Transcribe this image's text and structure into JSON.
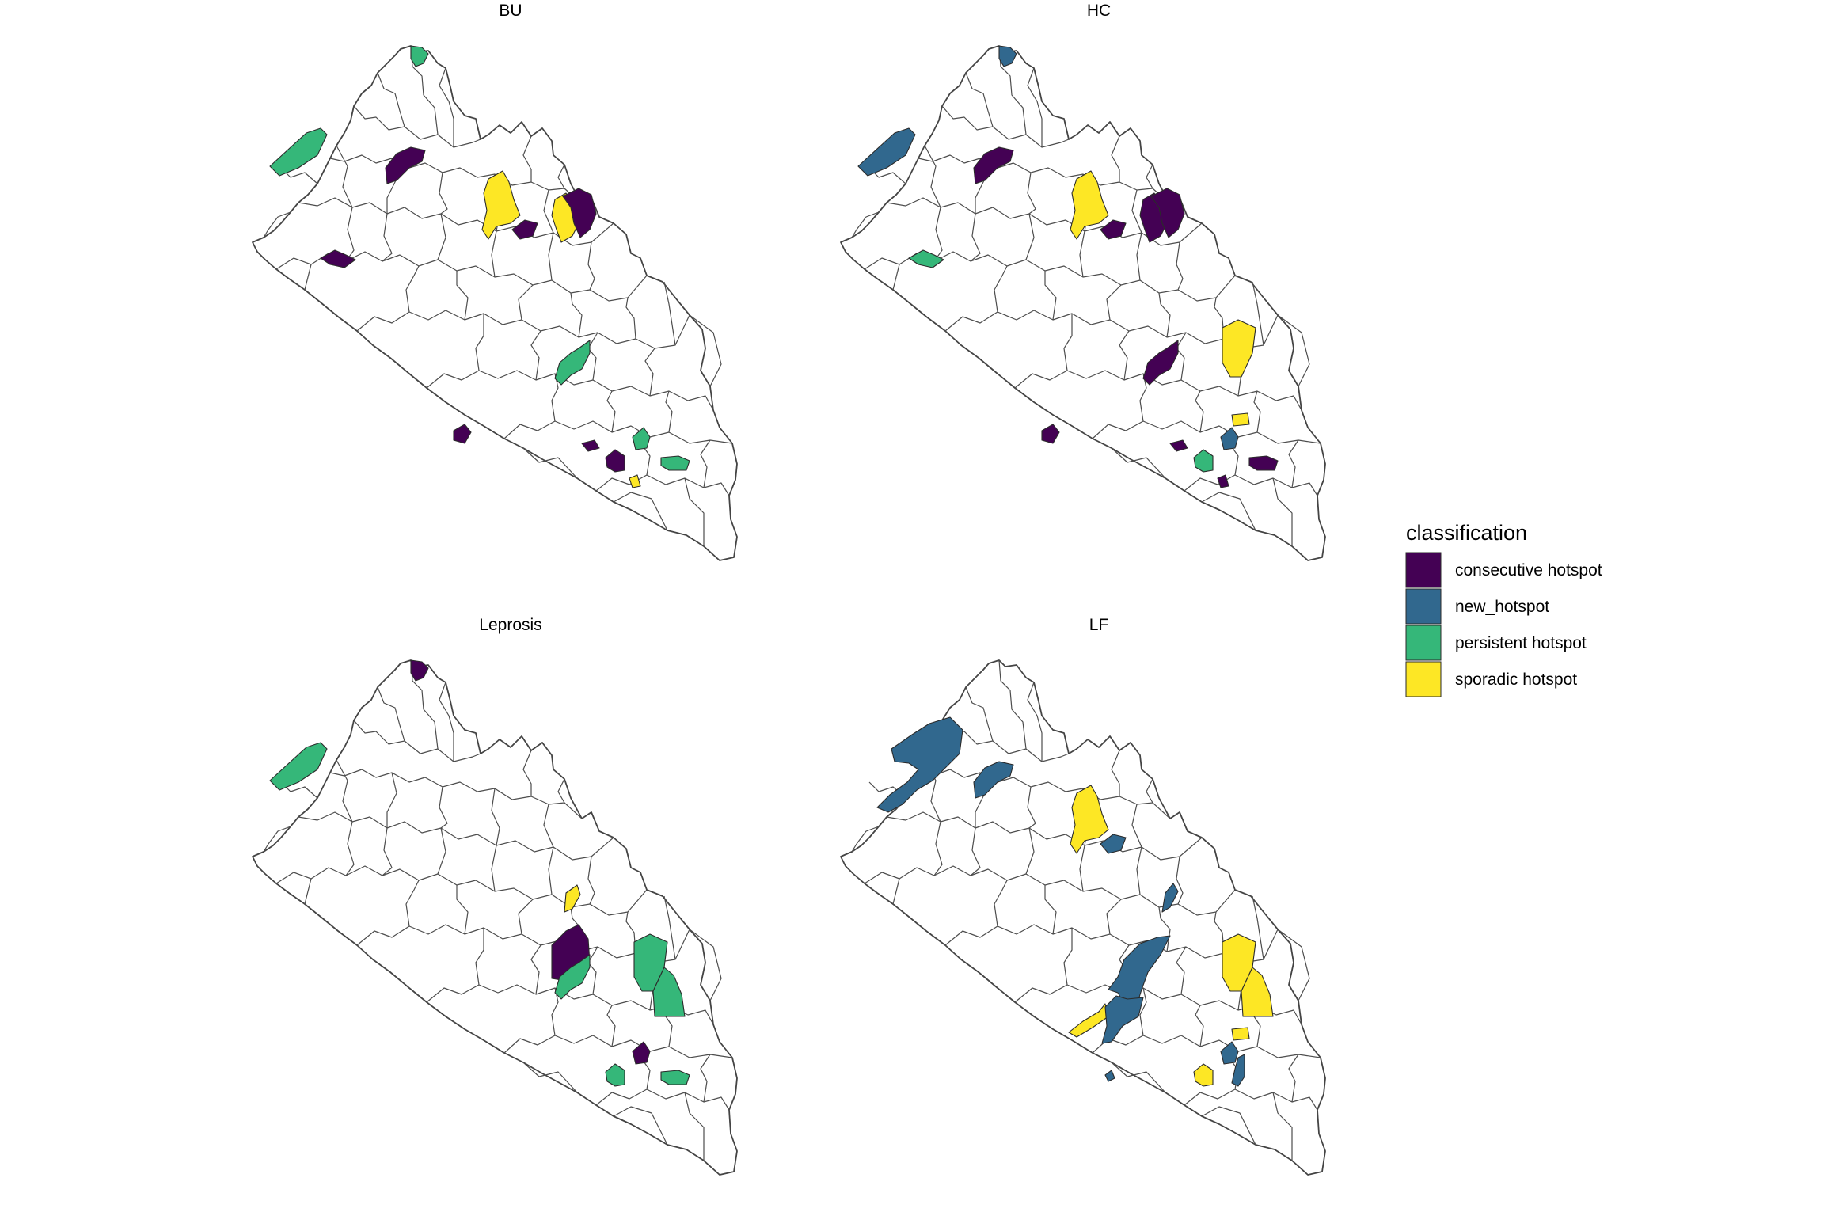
{
  "legend": {
    "title": "classification",
    "entries": [
      {
        "key": "consecutive",
        "label": "consecutive hotspot",
        "color": "#440154"
      },
      {
        "key": "new",
        "label": "new_hotspot",
        "color": "#31688E"
      },
      {
        "key": "persistent",
        "label": "persistent hotspot",
        "color": "#35B779"
      },
      {
        "key": "sporadic",
        "label": "sporadic hotspot",
        "color": "#FDE725"
      }
    ]
  },
  "maps": [
    {
      "title": "BU",
      "hotspots": [
        {
          "class": "persistent",
          "district": "north-tip"
        },
        {
          "class": "persistent",
          "district": "northwest-coast"
        },
        {
          "class": "consecutive",
          "district": "north-central"
        },
        {
          "class": "sporadic",
          "district": "central-north"
        },
        {
          "class": "consecutive",
          "district": "central-north-small"
        },
        {
          "class": "sporadic",
          "district": "northeast-west"
        },
        {
          "class": "consecutive",
          "district": "northeast-east"
        },
        {
          "class": "consecutive",
          "district": "west-coast"
        },
        {
          "class": "persistent",
          "district": "south-central"
        },
        {
          "class": "consecutive",
          "district": "southwest-coast"
        },
        {
          "class": "consecutive",
          "district": "south-small-a"
        },
        {
          "class": "consecutive",
          "district": "south-small-b"
        },
        {
          "class": "persistent",
          "district": "southeast-a"
        },
        {
          "class": "persistent",
          "district": "southeast-b"
        },
        {
          "class": "sporadic",
          "district": "southeast-small"
        }
      ]
    },
    {
      "title": "HC",
      "hotspots": [
        {
          "class": "new",
          "district": "north-tip"
        },
        {
          "class": "new",
          "district": "northwest-coast"
        },
        {
          "class": "consecutive",
          "district": "north-central"
        },
        {
          "class": "sporadic",
          "district": "central-north"
        },
        {
          "class": "consecutive",
          "district": "central-north-small"
        },
        {
          "class": "consecutive",
          "district": "northeast-west"
        },
        {
          "class": "consecutive",
          "district": "northeast-east"
        },
        {
          "class": "persistent",
          "district": "west-coast"
        },
        {
          "class": "consecutive",
          "district": "south-central"
        },
        {
          "class": "sporadic",
          "district": "east-upper"
        },
        {
          "class": "consecutive",
          "district": "southwest-coast"
        },
        {
          "class": "consecutive",
          "district": "south-small-a"
        },
        {
          "class": "sporadic",
          "district": "south-small-c"
        },
        {
          "class": "new",
          "district": "southeast-a"
        },
        {
          "class": "persistent",
          "district": "south-small-b"
        },
        {
          "class": "consecutive",
          "district": "southeast-b"
        },
        {
          "class": "consecutive",
          "district": "southeast-small"
        }
      ]
    },
    {
      "title": "Leprosis",
      "hotspots": [
        {
          "class": "consecutive",
          "district": "north-tip"
        },
        {
          "class": "persistent",
          "district": "northwest-coast"
        },
        {
          "class": "sporadic",
          "district": "northeast-small"
        },
        {
          "class": "consecutive",
          "district": "central-east"
        },
        {
          "class": "persistent",
          "district": "east-upper"
        },
        {
          "class": "persistent",
          "district": "east-upper-b"
        },
        {
          "class": "persistent",
          "district": "south-central"
        },
        {
          "class": "consecutive",
          "district": "southeast-a"
        },
        {
          "class": "persistent",
          "district": "south-small-b"
        },
        {
          "class": "persistent",
          "district": "southeast-b"
        }
      ]
    },
    {
      "title": "LF",
      "hotspots": [
        {
          "class": "new",
          "district": "northwest-large"
        },
        {
          "class": "new",
          "district": "north-central"
        },
        {
          "class": "sporadic",
          "district": "central-north"
        },
        {
          "class": "new",
          "district": "central-north-small"
        },
        {
          "class": "new",
          "district": "northeast-strip"
        },
        {
          "class": "new",
          "district": "central-large"
        },
        {
          "class": "sporadic",
          "district": "south-central-strip"
        },
        {
          "class": "new",
          "district": "south-central-large"
        },
        {
          "class": "sporadic",
          "district": "east-upper"
        },
        {
          "class": "sporadic",
          "district": "east-upper-b"
        },
        {
          "class": "new",
          "district": "southwest-dot"
        },
        {
          "class": "sporadic",
          "district": "south-small-c"
        },
        {
          "class": "new",
          "district": "southeast-a"
        },
        {
          "class": "sporadic",
          "district": "south-small-b"
        },
        {
          "class": "new",
          "district": "southeast-strip"
        }
      ]
    }
  ]
}
